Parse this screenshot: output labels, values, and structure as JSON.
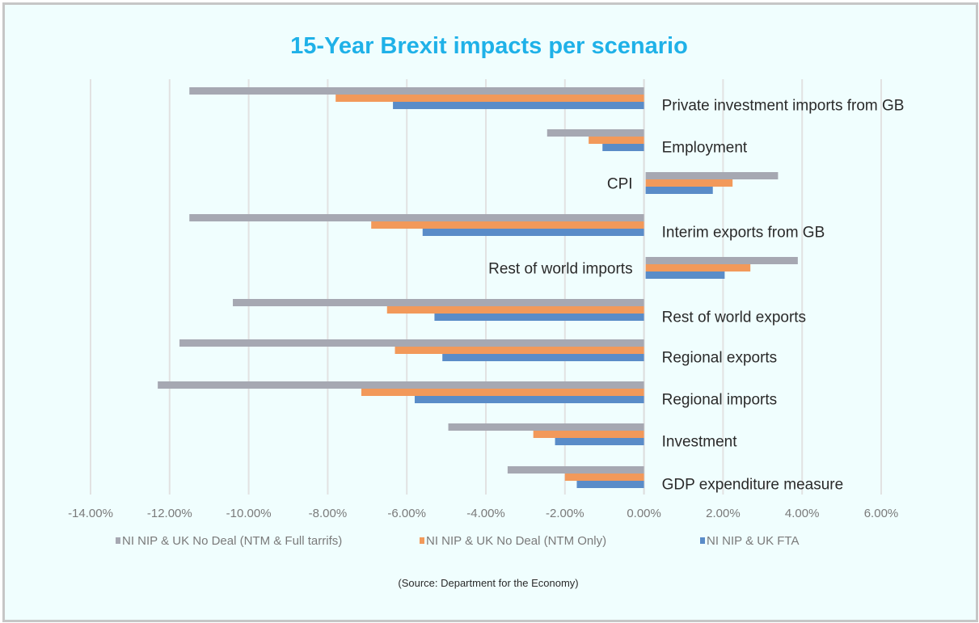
{
  "chart_data": {
    "type": "bar",
    "orientation": "horizontal",
    "title": "15-Year Brexit impacts per scenario",
    "source_note": "(Source: Department for the Economy)",
    "xlabel": "",
    "ylabel": "",
    "xlim": [
      -14,
      6
    ],
    "x_ticks": [
      -14,
      -12,
      -10,
      -8,
      -6,
      -4,
      -2,
      0,
      2,
      4,
      6
    ],
    "x_tick_labels": [
      "-14.00%",
      "-12.00%",
      "-10.00%",
      "-8.00%",
      "-6.00%",
      "-4.00%",
      "-2.00%",
      "0.00%",
      "2.00%",
      "4.00%",
      "6.00%"
    ],
    "grid": "vertical",
    "legend_position": "bottom",
    "categories": [
      "Private investment imports from GB",
      "Employment",
      "CPI",
      "Interim exports from GB",
      "Rest of world imports",
      "Rest of world exports",
      "Regional exports",
      "Regional imports",
      "Investment",
      "GDP expenditure measure"
    ],
    "series": [
      {
        "name": "NI NIP & UK No Deal (NTM & Full tarrifs)",
        "color": "#a6a8b2",
        "values": [
          -11.5,
          -2.45,
          3.35,
          -11.5,
          3.85,
          -10.4,
          -11.75,
          -12.3,
          -4.95,
          -3.45
        ]
      },
      {
        "name": "NI NIP & UK No Deal (NTM Only)",
        "color": "#f2995a",
        "values": [
          -7.8,
          -1.4,
          2.2,
          -6.9,
          2.65,
          -6.5,
          -6.3,
          -7.15,
          -2.8,
          -2.0
        ]
      },
      {
        "name": "NI NIP & UK FTA",
        "color": "#5a8cc8",
        "values": [
          -6.35,
          -1.05,
          1.7,
          -5.6,
          2.0,
          -5.3,
          -5.1,
          -5.8,
          -2.25,
          -1.7
        ]
      }
    ]
  }
}
